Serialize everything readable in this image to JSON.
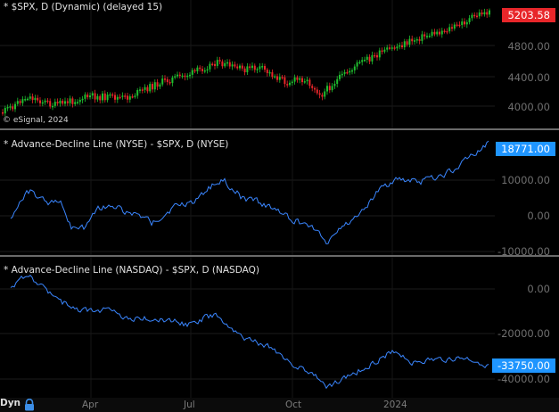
{
  "panels": [
    {
      "id": "spx",
      "title": "* $SPX, D (Dynamic) (delayed 15)",
      "copyright": "© eSignal, 2024",
      "last_value": "5203.58",
      "badge_color": "#e8262a",
      "y_labels": [
        "4800.00",
        "4400.00",
        "4000.00"
      ]
    },
    {
      "id": "adl-nyse",
      "title": "* Advance-Decline Line (NYSE) - $SPX, D (NYSE)",
      "last_value": "18771.00",
      "badge_color": "#1f95ff",
      "y_labels": [
        "10000.00",
        "0.00",
        "-10000.00"
      ]
    },
    {
      "id": "adl-nasdaq",
      "title": "* Advance-Decline Line (NASDAQ) - $SPX, D (NASDAQ)",
      "last_value": "-33750.00",
      "badge_color": "#1f95ff",
      "y_labels": [
        "0.00",
        "-20000.00",
        "-40000.00"
      ]
    }
  ],
  "x_axis": {
    "mode_label": "Dyn",
    "lock_icon": "lock-icon",
    "labels": [
      "Apr",
      "Jul",
      "Oct",
      "2024"
    ]
  },
  "colors": {
    "background": "#000000",
    "candle_up": "#1fbf2f",
    "candle_down": "#e8262a",
    "indicator_line": "#3a86ff"
  }
}
